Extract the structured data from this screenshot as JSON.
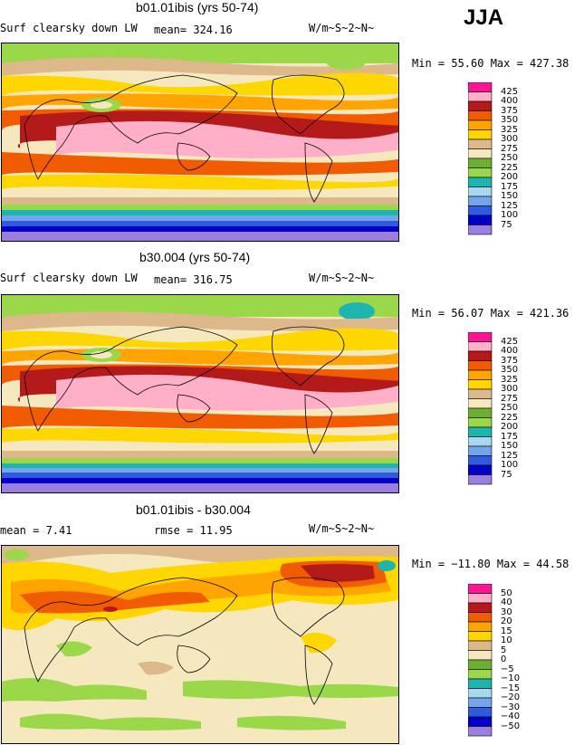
{
  "season": "JJA",
  "units": "W/m~S~2~N~",
  "colors": {
    "levels": [
      "#9b7ee0",
      "#0000c8",
      "#2f5cdd",
      "#74a4ec",
      "#a8d8f0",
      "#1db5ad",
      "#9ad84a",
      "#6db02f",
      "#f5e8bf",
      "#dcb88a",
      "#ffd700",
      "#ffa400",
      "#f25c00",
      "#b51a1a",
      "#ffb0c8",
      "#ff1493"
    ],
    "ocean_base": "#f5e8bf"
  },
  "panels": [
    {
      "title": "b01.01ibis (yrs 50-74)",
      "variable": "Surf clearsky down LW",
      "stat_text": "mean= 324.16",
      "minmax_text": "Min =  55.60 Max = 427.38",
      "icon": "world-map-icon"
    },
    {
      "title": "b30.004 (yrs 50-74)",
      "variable": "Surf clearsky down LW",
      "stat_text": "mean= 316.75",
      "minmax_text": "Min =  56.07 Max = 421.36",
      "icon": "world-map-icon"
    },
    {
      "title": "b01.01ibis - b30.004",
      "variable": "",
      "stat_text": "mean =   7.41",
      "rmse_text": "rmse =   11.95",
      "minmax_text": "Min = −11.80 Max =  44.58",
      "icon": "world-map-icon"
    }
  ],
  "chart_data": [
    {
      "type": "heatmap",
      "title": "b01.01ibis (yrs 50-74)",
      "subtitle": "Surf clearsky down LW",
      "mean": 324.16,
      "min": 55.6,
      "max": 427.38,
      "units": "W/m~S~2~N~",
      "levels": [
        "425",
        "400",
        "375",
        "350",
        "325",
        "300",
        "275",
        "250",
        "225",
        "200",
        "175",
        "150",
        "125",
        "100",
        "75"
      ]
    },
    {
      "type": "heatmap",
      "title": "b30.004 (yrs 50-74)",
      "subtitle": "Surf clearsky down LW",
      "mean": 316.75,
      "min": 56.07,
      "max": 421.36,
      "units": "W/m~S~2~N~",
      "levels": [
        "425",
        "400",
        "375",
        "350",
        "325",
        "300",
        "275",
        "250",
        "225",
        "200",
        "175",
        "150",
        "125",
        "100",
        "75"
      ]
    },
    {
      "type": "heatmap",
      "title": "b01.01ibis - b30.004",
      "mean": 7.41,
      "rmse": 11.95,
      "min": -11.8,
      "max": 44.58,
      "units": "W/m~S~2~N~",
      "levels": [
        "50",
        "40",
        "30",
        "20",
        "15",
        "10",
        "5",
        "0",
        "−5",
        "−10",
        "−15",
        "−20",
        "−30",
        "−40",
        "−50"
      ]
    }
  ]
}
